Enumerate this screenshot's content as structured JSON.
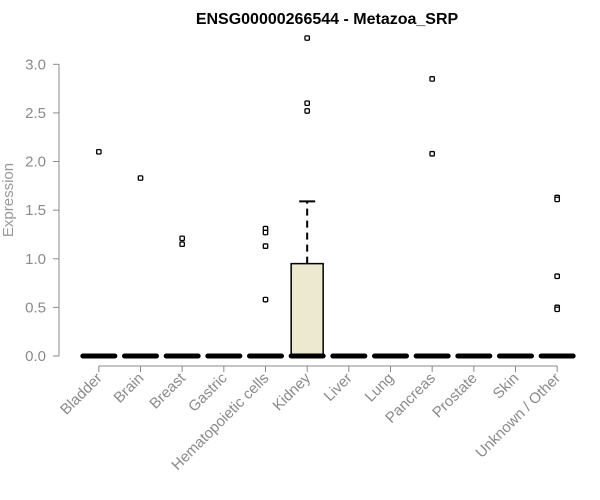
{
  "chart_data": {
    "type": "box",
    "title": "ENSG00000266544 - Metazoa_SRP",
    "ylabel": "Expression",
    "xlabel": "",
    "ylim": [
      0,
      3.25
    ],
    "yticks": [
      "0.0",
      "0.5",
      "1.0",
      "1.5",
      "2.0",
      "2.5",
      "3.0"
    ],
    "grid": false,
    "categories": [
      "Bladder",
      "Brain",
      "Breast",
      "Gastric",
      "Hematopoietic cells",
      "Kidney",
      "Liver",
      "Lung",
      "Pancreas",
      "Prostate",
      "Skin",
      "Unknown / Other"
    ],
    "boxes": [
      {
        "category": "Bladder",
        "q1": 0,
        "median": 0,
        "q3": 0,
        "whisker_low": 0,
        "whisker_high": 0,
        "outliers": [
          2.1
        ]
      },
      {
        "category": "Brain",
        "q1": 0,
        "median": 0,
        "q3": 0,
        "whisker_low": 0,
        "whisker_high": 0,
        "outliers": [
          1.83
        ]
      },
      {
        "category": "Breast",
        "q1": 0,
        "median": 0,
        "q3": 0,
        "whisker_low": 0,
        "whisker_high": 0,
        "outliers": [
          1.21,
          1.15
        ]
      },
      {
        "category": "Gastric",
        "q1": 0,
        "median": 0,
        "q3": 0,
        "whisker_low": 0,
        "whisker_high": 0,
        "outliers": []
      },
      {
        "category": "Hematopoietic cells",
        "q1": 0,
        "median": 0,
        "q3": 0,
        "whisker_low": 0,
        "whisker_high": 0,
        "outliers": [
          1.31,
          1.27,
          1.13,
          0.58
        ]
      },
      {
        "category": "Kidney",
        "q1": 0,
        "median": 0,
        "q3": 0.95,
        "whisker_low": 0,
        "whisker_high": 1.59,
        "outliers": [
          3.27,
          2.6,
          2.52
        ]
      },
      {
        "category": "Liver",
        "q1": 0,
        "median": 0,
        "q3": 0,
        "whisker_low": 0,
        "whisker_high": 0,
        "outliers": []
      },
      {
        "category": "Lung",
        "q1": 0,
        "median": 0,
        "q3": 0,
        "whisker_low": 0,
        "whisker_high": 0,
        "outliers": []
      },
      {
        "category": "Pancreas",
        "q1": 0,
        "median": 0,
        "q3": 0,
        "whisker_low": 0,
        "whisker_high": 0,
        "outliers": [
          2.85,
          2.08
        ]
      },
      {
        "category": "Prostate",
        "q1": 0,
        "median": 0,
        "q3": 0,
        "whisker_low": 0,
        "whisker_high": 0,
        "outliers": []
      },
      {
        "category": "Skin",
        "q1": 0,
        "median": 0,
        "q3": 0,
        "whisker_low": 0,
        "whisker_high": 0,
        "outliers": []
      },
      {
        "category": "Unknown / Other",
        "q1": 0,
        "median": 0,
        "q3": 0,
        "whisker_low": 0,
        "whisker_high": 0,
        "outliers": [
          1.63,
          1.61,
          0.82,
          0.5,
          0.48
        ]
      }
    ],
    "colors": {
      "box_fill": "#ede8d0",
      "box_stroke": "#000000",
      "axis": "#8a8a8a",
      "point": "#000000"
    }
  }
}
